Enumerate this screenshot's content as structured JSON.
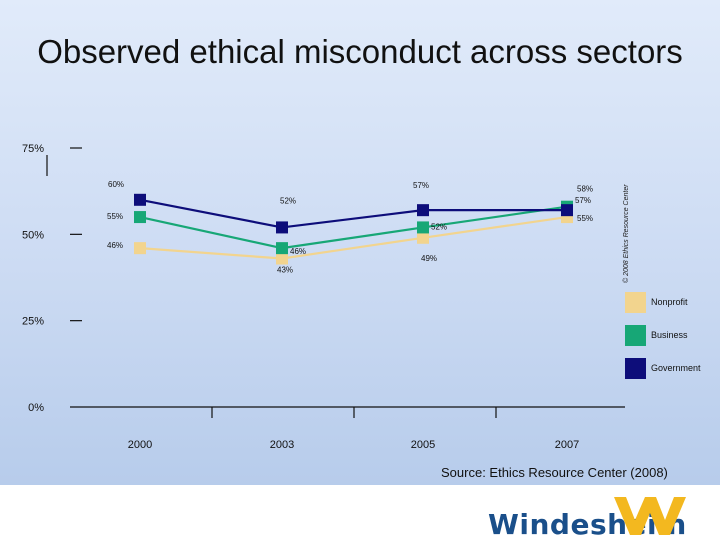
{
  "slide": {
    "title": "Observed ethical misconduct across sectors",
    "source": "Source: Ethics Resource Center (2008)",
    "logo_text": "Windesheim",
    "watermark": "© 2008 Ethics Resource Center"
  },
  "colors": {
    "nonprofit": "#f2d48e",
    "business": "#17a776",
    "government": "#0d0d7a",
    "logo": "#1a4f8a",
    "logo_mark": "#f3b81f"
  },
  "chart_data": {
    "type": "line",
    "title": "Observed ethical misconduct across sectors",
    "x": [
      "2000",
      "2003",
      "2005",
      "2007"
    ],
    "y_ticks": [
      "0%",
      "25%",
      "50%",
      "75%"
    ],
    "ylim": [
      0,
      75
    ],
    "legend_position": "right",
    "series": [
      {
        "name": "Government",
        "color": "#0d0d7a",
        "values": [
          60,
          52,
          57,
          57
        ],
        "labels": [
          "60%",
          "52%",
          "57%",
          "57%"
        ]
      },
      {
        "name": "Business",
        "color": "#17a776",
        "values": [
          55,
          46,
          52,
          58
        ],
        "labels": [
          "55%",
          "46%",
          "52%",
          "58%"
        ]
      },
      {
        "name": "Nonprofit",
        "color": "#f2d48e",
        "values": [
          46,
          43,
          49,
          55
        ],
        "labels": [
          "46%",
          "43%",
          "49%",
          "55%"
        ]
      }
    ],
    "legend": [
      "Nonprofit",
      "Business",
      "Government"
    ]
  }
}
